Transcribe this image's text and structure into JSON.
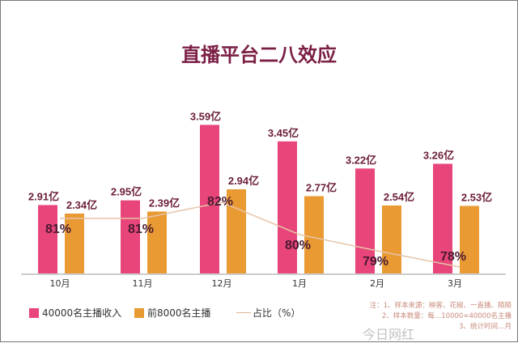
{
  "title": "直播平台二八效应",
  "chart_data": {
    "type": "bar",
    "title": "直播平台二八效应",
    "categories": [
      "10月",
      "11月",
      "12月",
      "1月",
      "2月",
      "3月"
    ],
    "series": [
      {
        "name": "40000名主播收入",
        "values": [
          2.91,
          2.95,
          3.59,
          3.45,
          3.22,
          3.26
        ],
        "labels": [
          "2.91亿",
          "2.95亿",
          "3.59亿",
          "3.45亿",
          "3.22亿",
          "3.26亿"
        ],
        "color": "#e8457a",
        "ylim": [
          2.33,
          3.75
        ]
      },
      {
        "name": "前8000名主播",
        "values": [
          2.34,
          2.39,
          2.94,
          2.77,
          2.54,
          2.53
        ],
        "labels": [
          "2.34亿",
          "2.39亿",
          "2.94亿",
          "2.77亿",
          "2.54亿",
          "2.53亿"
        ],
        "color": "#e99a33",
        "ylim": [
          0.86,
          3.0
        ]
      },
      {
        "name": "占比（%）",
        "type": "line",
        "values": [
          81,
          81,
          82,
          80,
          79,
          78
        ],
        "labels": [
          "81%",
          "81%",
          "82%",
          "80%",
          "79%",
          "78%"
        ],
        "color": "#e6c4a8",
        "ylim": [
          77.6,
          83
        ]
      }
    ],
    "legend": "bottom",
    "grid": false
  },
  "legend": [
    "40000名主播收入",
    "前8000名主播",
    "占比（%）"
  ],
  "notes": [
    "注：1、样本来源：映客、花椒、一直播、陌陌",
    "2、样本数量：每…10000=40000名主播",
    "3、统计时间…月"
  ],
  "watermark": "今日网红"
}
